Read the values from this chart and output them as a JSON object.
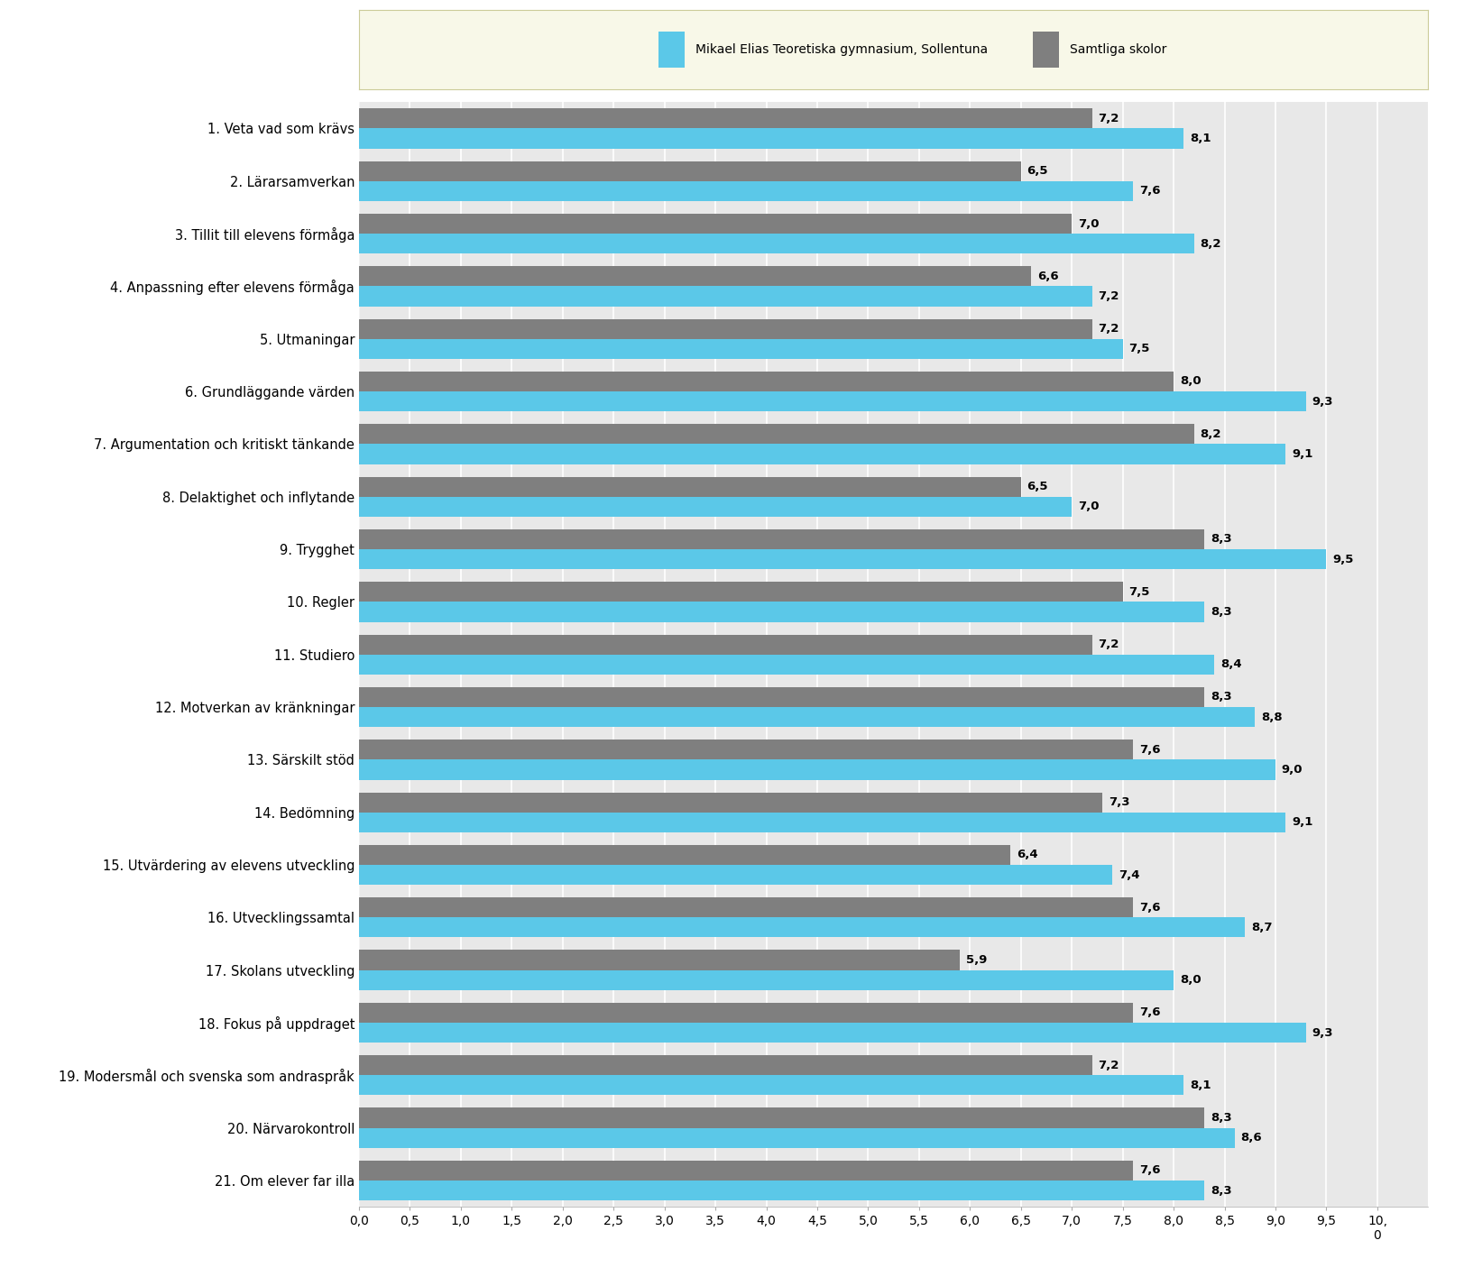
{
  "categories": [
    "1. Veta vad som krävs",
    "2. Lärarsamverkan",
    "3. Tillit till elevens förmåga",
    "4. Anpassning efter elevens förmåga",
    "5. Utmaningar",
    "6. Grundläggande värden",
    "7. Argumentation och kritiskt tänkande",
    "8. Delaktighet och inflytande",
    "9. Trygghet",
    "10. Regler",
    "11. Studiero",
    "12. Motverkan av kränkningar",
    "13. Särskilt stöd",
    "14. Bedömning",
    "15. Utvärdering av elevens utveckling",
    "16. Utvecklingssamtal",
    "17. Skolans utveckling",
    "18. Fokus på uppdraget",
    "19. Modersmål och svenska som andraspråk",
    "20. Närvarokontroll",
    "21. Om elever far illa"
  ],
  "samtliga_values": [
    7.2,
    6.5,
    7.0,
    6.6,
    7.2,
    8.0,
    8.2,
    6.5,
    8.3,
    7.5,
    7.2,
    8.3,
    7.6,
    7.3,
    6.4,
    7.6,
    5.9,
    7.6,
    7.2,
    8.3,
    7.6
  ],
  "mikael_values": [
    8.1,
    7.6,
    8.2,
    7.2,
    7.5,
    9.3,
    9.1,
    7.0,
    9.5,
    8.3,
    8.4,
    8.8,
    9.0,
    9.1,
    7.4,
    8.7,
    8.0,
    9.3,
    8.1,
    8.6,
    8.3
  ],
  "color_mikael": "#5BC8E8",
  "color_samtliga": "#7F7F7F",
  "legend_mikael": "Mikael Elias Teoretiska gymnasium, Sollentuna",
  "legend_samtliga": "Samtliga skolor",
  "xlim_max": 10.5,
  "xticks": [
    0.0,
    0.5,
    1.0,
    1.5,
    2.0,
    2.5,
    3.0,
    3.5,
    4.0,
    4.5,
    5.0,
    5.5,
    6.0,
    6.5,
    7.0,
    7.5,
    8.0,
    8.5,
    9.0,
    9.5,
    10.0
  ],
  "background_plot": "#E8E8E8",
  "background_legend": "#F8F8E8",
  "bar_height": 0.38,
  "label_fontsize": 10.5,
  "tick_fontsize": 10,
  "value_fontsize": 9.5
}
